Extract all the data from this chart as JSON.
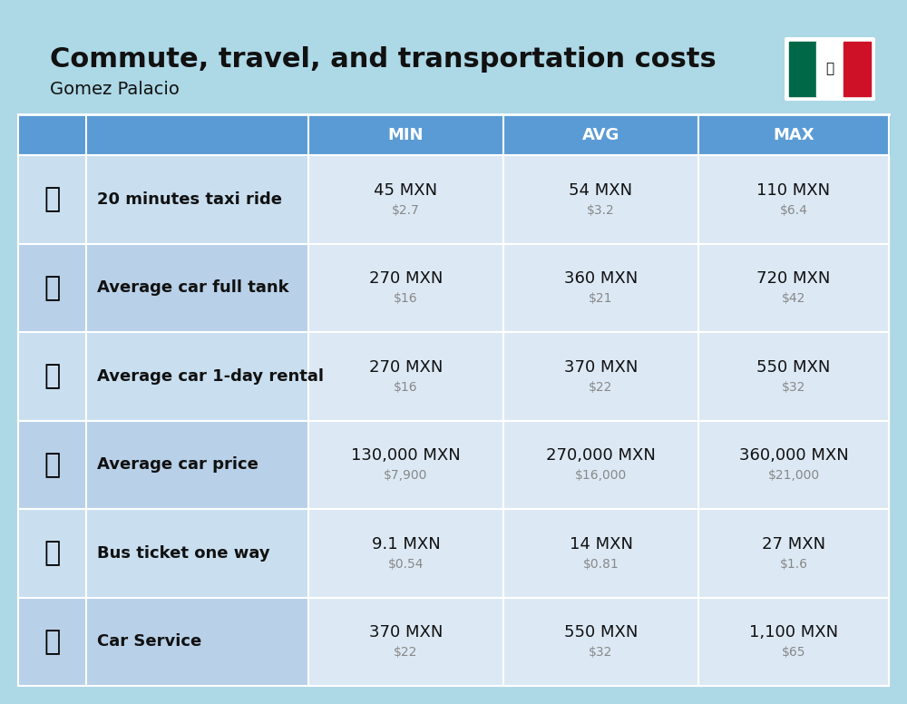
{
  "title": "Commute, travel, and transportation costs",
  "subtitle": "Gomez Palacio",
  "background_color": "#add8e6",
  "header_bg_color": "#5b9bd5",
  "header_text_color": "#ffffff",
  "row_bg_color_light": "#c9dff0",
  "row_bg_color_dark": "#b8d0e8",
  "cell_bg_white": "#dce9f5",
  "col_headers": [
    "MIN",
    "AVG",
    "MAX"
  ],
  "rows": [
    {
      "label": "20 minutes taxi ride",
      "emoji": "🚕",
      "min_mxn": "45 MXN",
      "min_usd": "$2.7",
      "avg_mxn": "54 MXN",
      "avg_usd": "$3.2",
      "max_mxn": "110 MXN",
      "max_usd": "$6.4"
    },
    {
      "label": "Average car full tank",
      "emoji": "⛽",
      "min_mxn": "270 MXN",
      "min_usd": "$16",
      "avg_mxn": "360 MXN",
      "avg_usd": "$21",
      "max_mxn": "720 MXN",
      "max_usd": "$42"
    },
    {
      "label": "Average car 1-day rental",
      "emoji": "🚗",
      "min_mxn": "270 MXN",
      "min_usd": "$16",
      "avg_mxn": "370 MXN",
      "avg_usd": "$22",
      "max_mxn": "550 MXN",
      "max_usd": "$32"
    },
    {
      "label": "Average car price",
      "emoji": "🚘",
      "min_mxn": "130,000 MXN",
      "min_usd": "$7,900",
      "avg_mxn": "270,000 MXN",
      "avg_usd": "$16,000",
      "max_mxn": "360,000 MXN",
      "max_usd": "$21,000"
    },
    {
      "label": "Bus ticket one way",
      "emoji": "🚌",
      "min_mxn": "9.1 MXN",
      "min_usd": "$0.54",
      "avg_mxn": "14 MXN",
      "avg_usd": "$0.81",
      "max_mxn": "27 MXN",
      "max_usd": "$1.6"
    },
    {
      "label": "Car Service",
      "emoji": "🔧",
      "min_mxn": "370 MXN",
      "min_usd": "$22",
      "avg_mxn": "550 MXN",
      "avg_usd": "$32",
      "max_mxn": "1,100 MXN",
      "max_usd": "$65"
    }
  ],
  "title_fontsize": 22,
  "subtitle_fontsize": 14,
  "header_fontsize": 13,
  "row_label_fontsize": 13,
  "cell_mxn_fontsize": 13,
  "cell_usd_fontsize": 10,
  "usd_color": "#888888",
  "text_color": "#111111"
}
